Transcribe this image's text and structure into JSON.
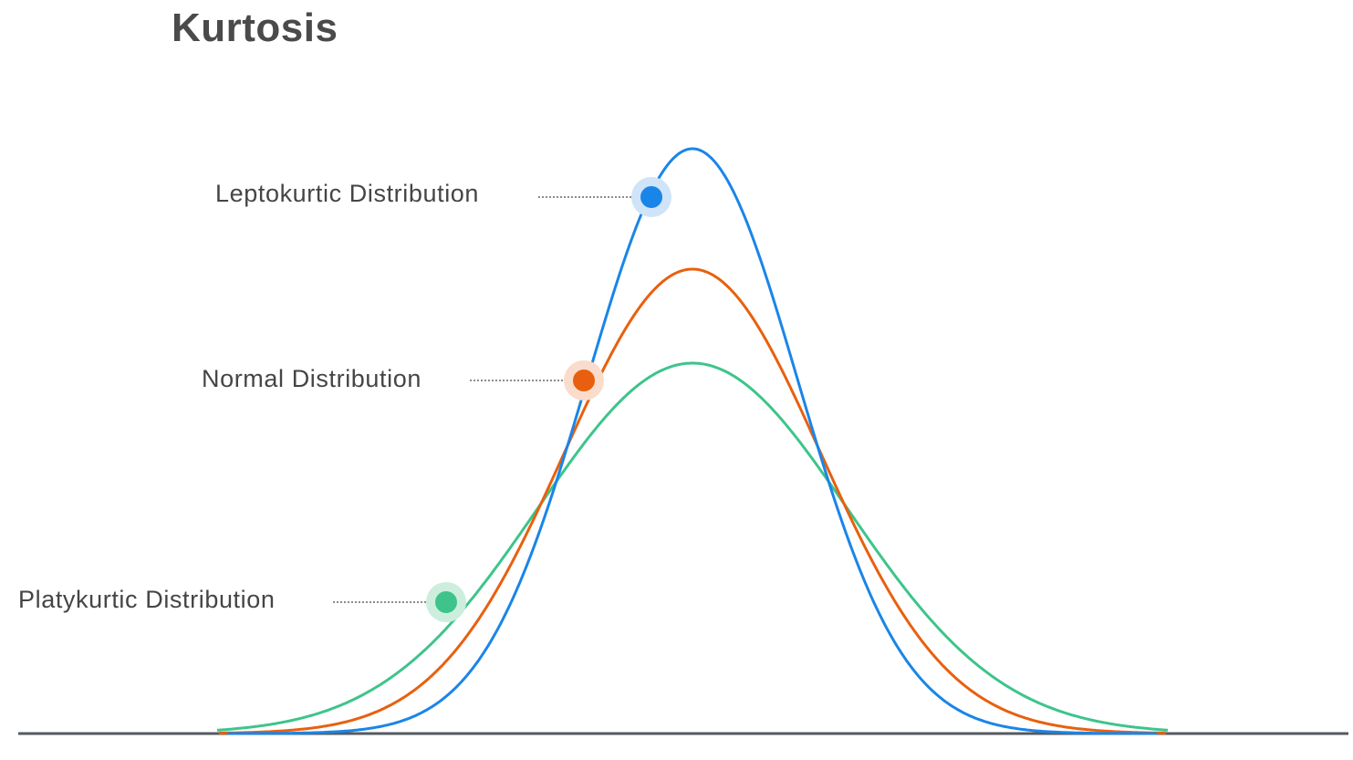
{
  "title": "Kurtosis",
  "distributions": [
    {
      "key": "leptokurtic",
      "label": "Leptokurtic  Distribution",
      "color": "#1a85e8",
      "halo": "#cfe4f9"
    },
    {
      "key": "normal",
      "label": "Normal  Distribution",
      "color": "#e8600f",
      "halo": "#f9dccb"
    },
    {
      "key": "platykurtic",
      "label": "Platykurtic Distribution",
      "color": "#3ec48b",
      "halo": "#cdeedd"
    }
  ],
  "colors": {
    "axis": "#555a5f",
    "leader": "#666666",
    "text": "#454545"
  }
}
